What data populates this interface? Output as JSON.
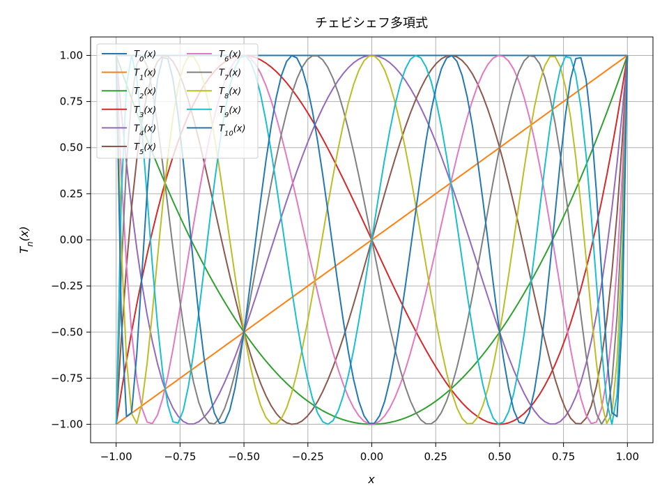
{
  "chart_data": {
    "type": "line",
    "title": "チェビシェフ多項式",
    "xlabel": "x",
    "ylabel": "T_n(x)",
    "xlim": [
      -1.1,
      1.1
    ],
    "ylim": [
      -1.1,
      1.1
    ],
    "x_ticks": [
      "−1.00",
      "−0.75",
      "−0.50",
      "−0.25",
      "0.00",
      "0.25",
      "0.50",
      "0.75",
      "1.00"
    ],
    "x_tick_values": [
      -1.0,
      -0.75,
      -0.5,
      -0.25,
      0.0,
      0.25,
      0.5,
      0.75,
      1.0
    ],
    "y_ticks": [
      "−1.00",
      "−0.75",
      "−0.50",
      "−0.25",
      "0.00",
      "0.25",
      "0.50",
      "0.75",
      "1.00"
    ],
    "y_tick_values": [
      -1.0,
      -0.75,
      -0.5,
      -0.25,
      0.0,
      0.25,
      0.5,
      0.75,
      1.0
    ],
    "grid": true,
    "legend_position": "top-left",
    "legend_columns": 2,
    "x_samples": 100,
    "series": [
      {
        "name": "T0(x)",
        "n": 0,
        "color": "#1f77b4"
      },
      {
        "name": "T1(x)",
        "n": 1,
        "color": "#ff7f0e"
      },
      {
        "name": "T2(x)",
        "n": 2,
        "color": "#2ca02c"
      },
      {
        "name": "T3(x)",
        "n": 3,
        "color": "#d62728"
      },
      {
        "name": "T4(x)",
        "n": 4,
        "color": "#9467bd"
      },
      {
        "name": "T5(x)",
        "n": 5,
        "color": "#8c564b"
      },
      {
        "name": "T6(x)",
        "n": 6,
        "color": "#e377c2"
      },
      {
        "name": "T7(x)",
        "n": 7,
        "color": "#7f7f7f"
      },
      {
        "name": "T8(x)",
        "n": 8,
        "color": "#bcbd22"
      },
      {
        "name": "T9(x)",
        "n": 9,
        "color": "#17becf"
      },
      {
        "name": "T10(x)",
        "n": 10,
        "color": "#1f77b4"
      }
    ]
  }
}
